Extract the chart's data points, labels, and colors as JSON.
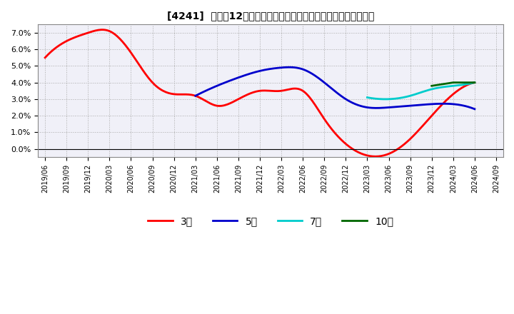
{
  "title": "[4241]  売上高12か月移動合計の対前年同期増減率の平均値の推移",
  "ylim": [
    -0.005,
    0.075
  ],
  "yticks": [
    0.0,
    0.01,
    0.02,
    0.03,
    0.04,
    0.05,
    0.06,
    0.07
  ],
  "yticklabels": [
    "0.0%",
    "1.0%",
    "2.0%",
    "3.0%",
    "4.0%",
    "5.0%",
    "6.0%",
    "7.0%"
  ],
  "background_color": "#ffffff",
  "plot_bg_color": "#f0f0f8",
  "grid_color": "#aaaaaa",
  "line_colors": {
    "3y": "#ff0000",
    "5y": "#0000cc",
    "7y": "#00cccc",
    "10y": "#006600"
  },
  "legend_labels": [
    "3年",
    "5年",
    "7年",
    "10年"
  ],
  "series_3y": {
    "x": [
      0,
      3,
      6,
      9,
      12,
      15,
      18,
      21,
      24,
      27,
      30,
      33,
      36,
      39,
      42,
      45,
      48,
      51,
      54,
      57,
      60
    ],
    "values": [
      0.055,
      0.065,
      0.07,
      0.071,
      0.058,
      0.04,
      0.033,
      0.032,
      0.026,
      0.03,
      0.035,
      0.035,
      0.035,
      0.018,
      0.003,
      -0.004,
      -0.003,
      0.006,
      0.02,
      0.033,
      0.04
    ]
  },
  "series_5y": {
    "x": [
      21,
      24,
      27,
      30,
      33,
      36,
      39,
      42,
      45,
      48,
      51,
      54,
      57,
      60
    ],
    "values": [
      0.032,
      0.038,
      0.043,
      0.047,
      0.049,
      0.048,
      0.04,
      0.03,
      0.025,
      0.025,
      0.026,
      0.027,
      0.027,
      0.024
    ]
  },
  "series_7y": {
    "x": [
      45,
      48,
      51,
      54,
      57,
      60
    ],
    "values": [
      0.031,
      0.03,
      0.032,
      0.036,
      0.038,
      0.04
    ]
  },
  "series_10y": {
    "x": [
      54,
      57,
      60
    ],
    "values": [
      0.038,
      0.04,
      0.04
    ]
  }
}
